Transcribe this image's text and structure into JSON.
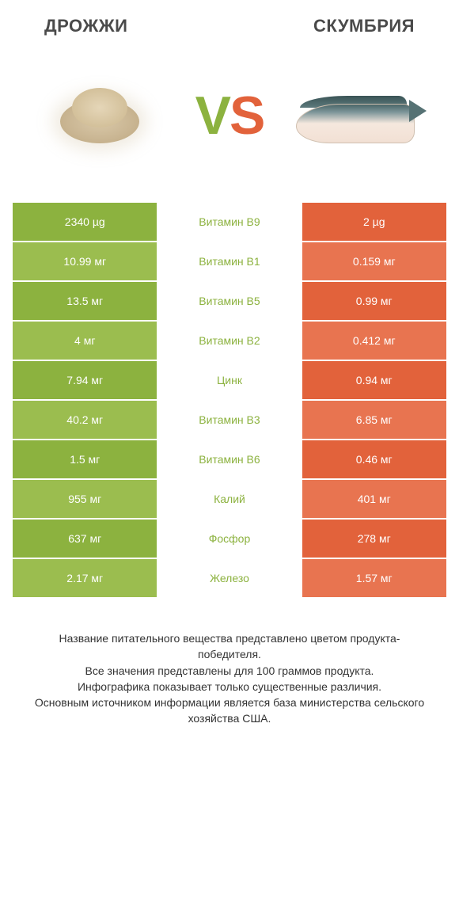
{
  "header": {
    "left_title": "ДРОЖЖИ",
    "right_title": "СКУМБРИЯ"
  },
  "vs": {
    "v": "V",
    "s": "S"
  },
  "colors": {
    "left_solid": "#8cb23f",
    "left_alt": "#9bbd4f",
    "right_solid": "#e2623b",
    "right_alt": "#e87450",
    "mid_text_left_win": "#8cb23f",
    "mid_text_right_win": "#e2623b",
    "header_text": "#4a4a4a",
    "footer_text": "#333333",
    "white": "#ffffff"
  },
  "rows": [
    {
      "left": "2340 µg",
      "mid": "Витамин B9",
      "right": "2 µg",
      "winner": "left"
    },
    {
      "left": "10.99 мг",
      "mid": "Витамин B1",
      "right": "0.159 мг",
      "winner": "left"
    },
    {
      "left": "13.5 мг",
      "mid": "Витамин B5",
      "right": "0.99 мг",
      "winner": "left"
    },
    {
      "left": "4 мг",
      "mid": "Витамин B2",
      "right": "0.412 мг",
      "winner": "left"
    },
    {
      "left": "7.94 мг",
      "mid": "Цинк",
      "right": "0.94 мг",
      "winner": "left"
    },
    {
      "left": "40.2 мг",
      "mid": "Витамин B3",
      "right": "6.85 мг",
      "winner": "left"
    },
    {
      "left": "1.5 мг",
      "mid": "Витамин B6",
      "right": "0.46 мг",
      "winner": "left"
    },
    {
      "left": "955 мг",
      "mid": "Калий",
      "right": "401 мг",
      "winner": "left"
    },
    {
      "left": "637 мг",
      "mid": "Фосфор",
      "right": "278 мг",
      "winner": "left"
    },
    {
      "left": "2.17 мг",
      "mid": "Железо",
      "right": "1.57 мг",
      "winner": "left"
    }
  ],
  "footer": {
    "line1": "Название питательного вещества представлено цветом продукта-победителя.",
    "line2": "Все значения представлены для 100 граммов продукта.",
    "line3": "Инфографика показывает только существенные различия.",
    "line4": "Основным источником информации является база министерства сельского хозяйства США."
  },
  "typography": {
    "header_fontsize": 22,
    "row_fontsize": 14,
    "footer_fontsize": 14,
    "vs_fontsize": 68
  }
}
